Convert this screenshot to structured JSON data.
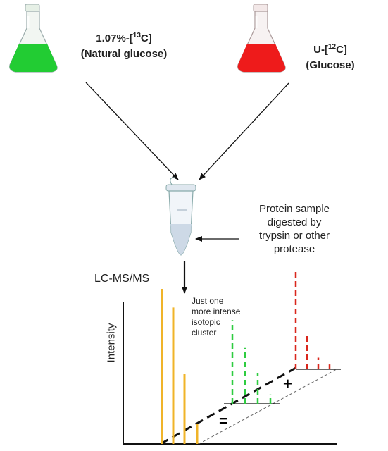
{
  "flasks": [
    {
      "label_prefix": "1.07%-[",
      "label_sup": "13",
      "label_suffix": "C]",
      "label_line2": "(Natural glucose)",
      "liquid_color": "#22cc33"
    },
    {
      "label_prefix": "U-[",
      "label_sup": "12",
      "label_suffix": "C]",
      "label_line2": "(Glucose)",
      "liquid_color": "#ee1b1b"
    }
  ],
  "tube": {
    "label": "Protein sample digested by trypsin or other protease",
    "label_lines": [
      "Protein sample",
      "digested by",
      "trypsin or other",
      "protease"
    ]
  },
  "method_label": "LC-MS/MS",
  "annotation_lines": [
    "Just one",
    "more intense",
    "isotopic",
    "cluster"
  ],
  "y_axis_label": "Intensity",
  "plus_symbol": "+",
  "equals_symbol": "=",
  "colors": {
    "combined": "#f0b429",
    "green_cluster": "#2ecc40",
    "red_cluster": "#d9261c"
  },
  "chart_data": {
    "type": "bar",
    "series": [
      {
        "name": "",
        "color": "#f0b429",
        "style": "solid",
        "values": [
          1.0,
          0.88,
          0.45,
          0.13
        ]
      },
      {
        "name": "",
        "color": "#2ecc40",
        "style": "dashed",
        "values": [
          0.9,
          0.6,
          0.33,
          0.1
        ]
      },
      {
        "name": "",
        "color": "#d9261c",
        "style": "dashed",
        "values": [
          1.0,
          0.35,
          0.12,
          0.05
        ]
      }
    ]
  }
}
